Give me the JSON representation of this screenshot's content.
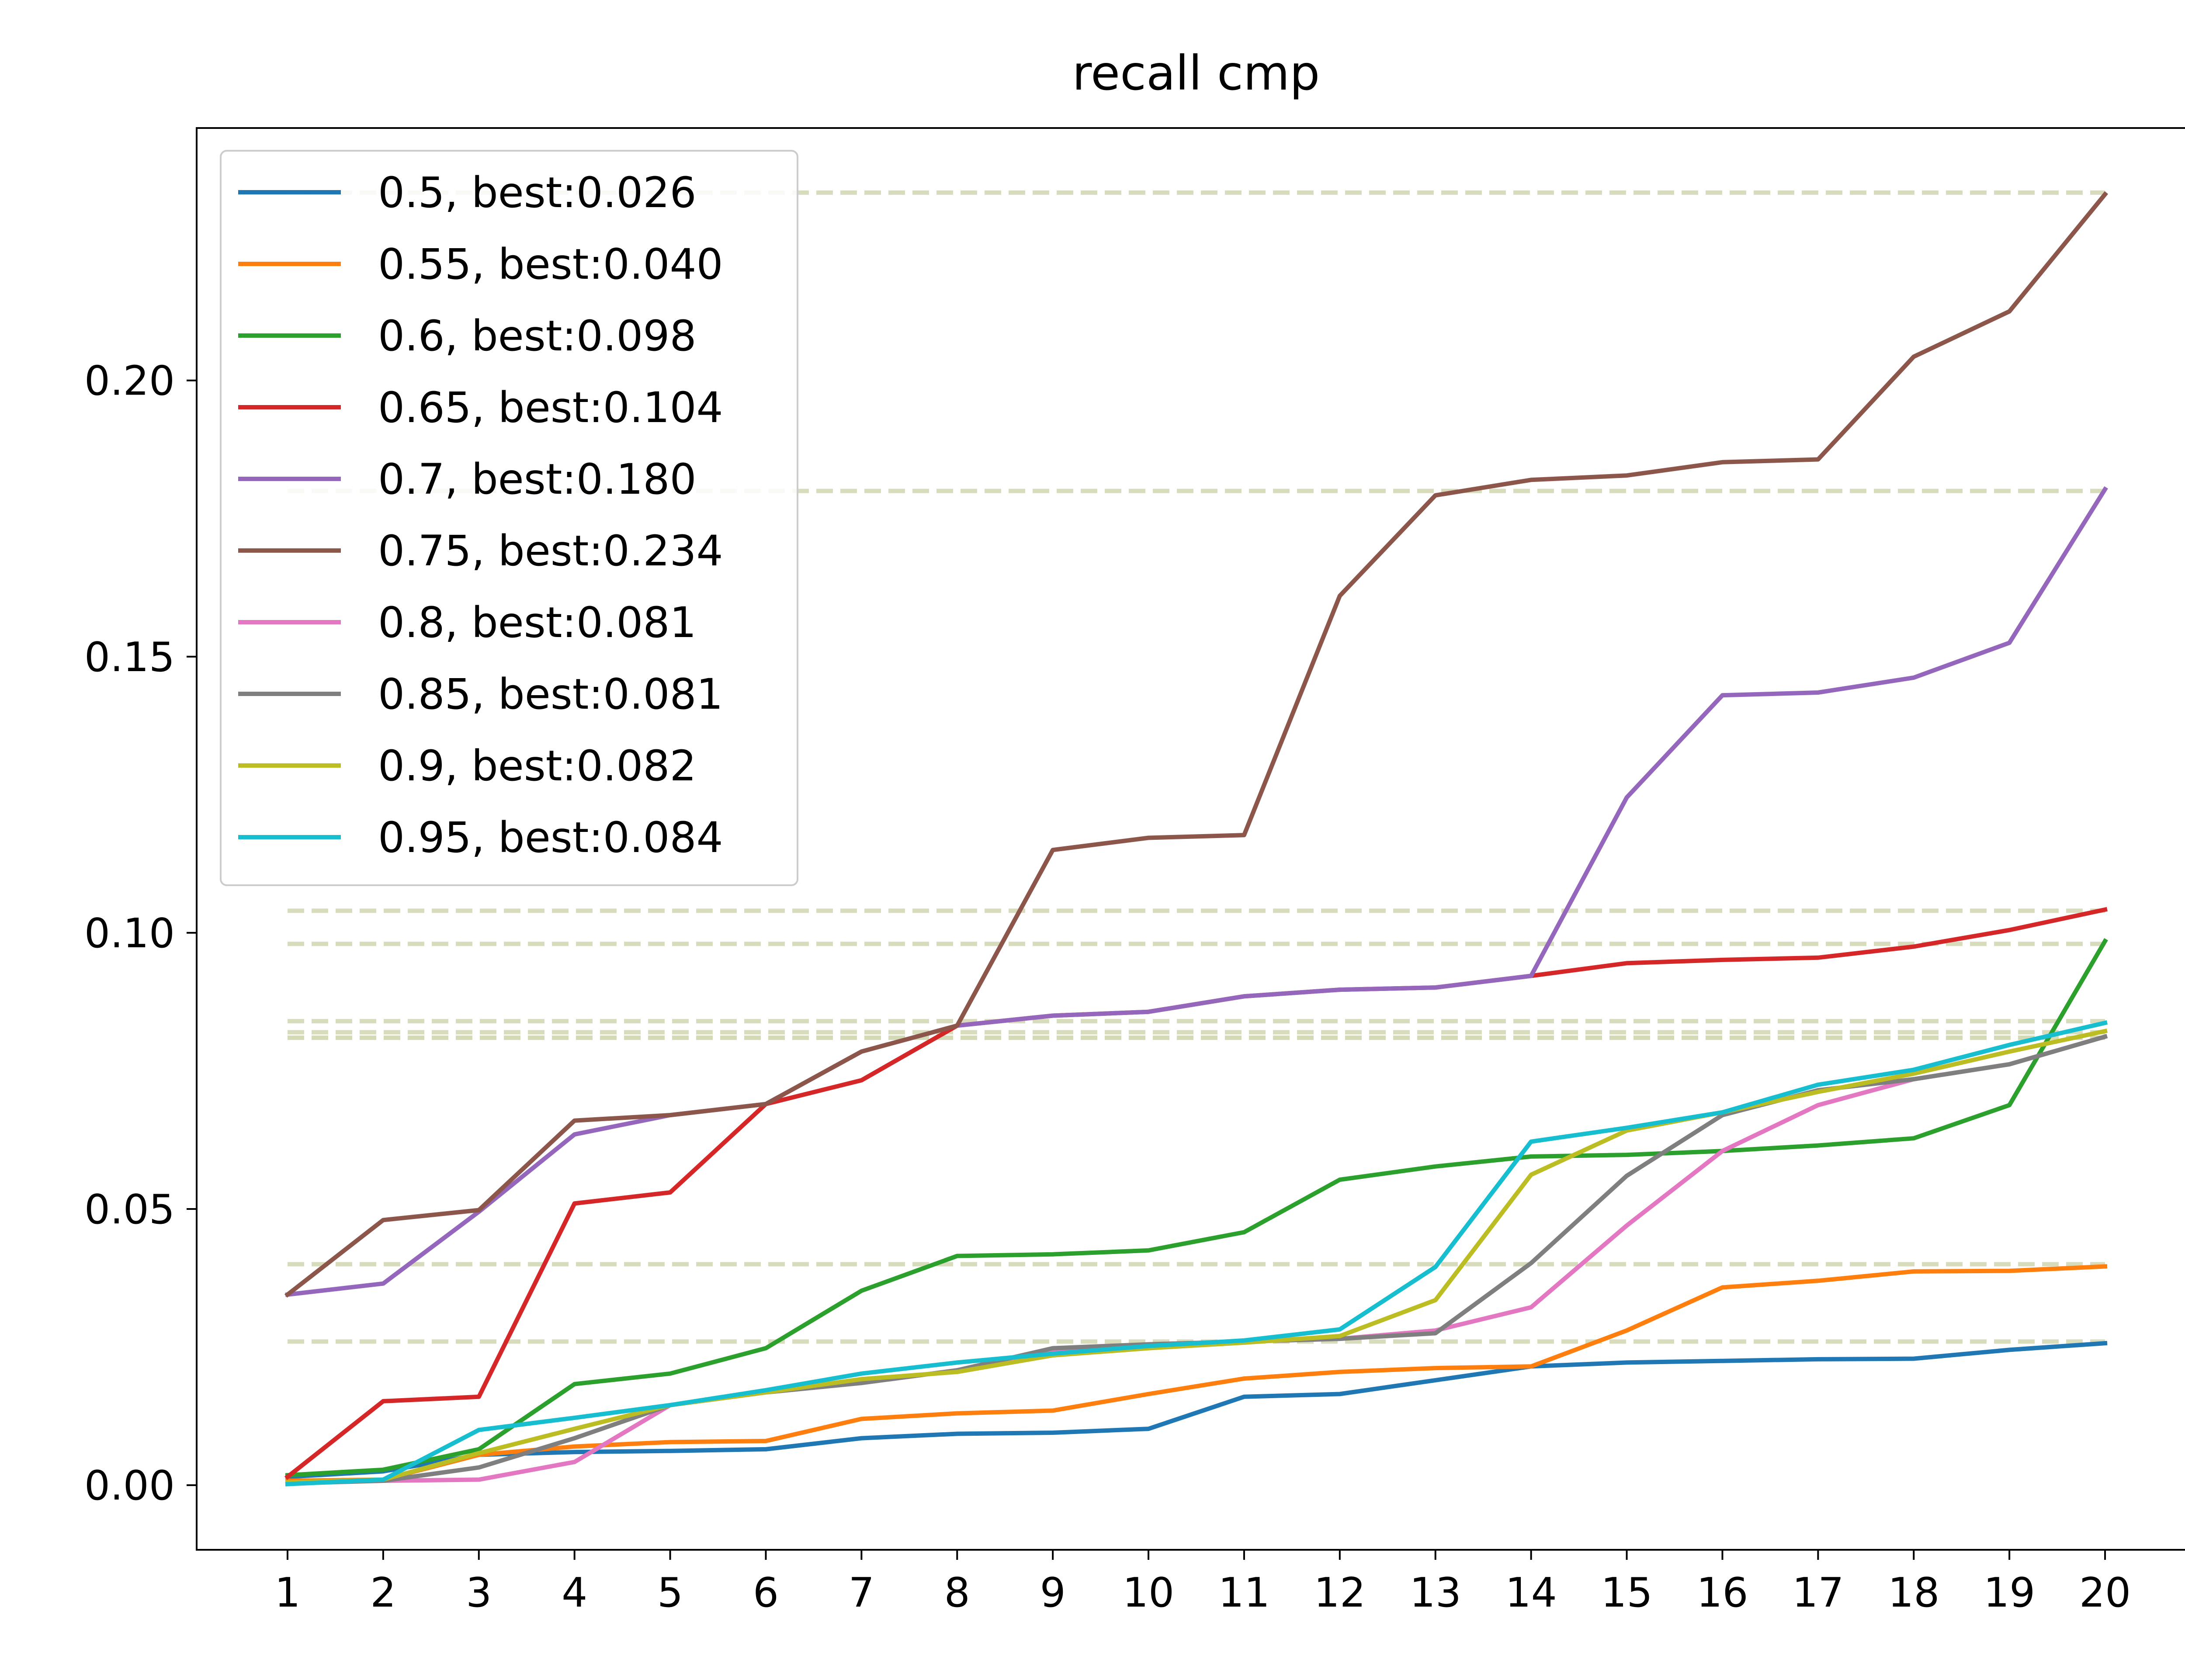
{
  "chart_data": {
    "type": "line",
    "title": "recall cmp",
    "xlabel": "",
    "ylabel": "",
    "x": [
      1,
      2,
      3,
      4,
      5,
      6,
      7,
      8,
      9,
      10,
      11,
      12,
      13,
      14,
      15,
      16,
      17,
      18,
      19,
      20
    ],
    "xlim": [
      0.05,
      20.95
    ],
    "ylim": [
      -0.0117,
      0.2457
    ],
    "yticks": [
      "0.00",
      "0.05",
      "0.10",
      "0.15",
      "0.20"
    ],
    "ytick_values": [
      0.0,
      0.05,
      0.1,
      0.15,
      0.2
    ],
    "grid": false,
    "legend_position": "upper left",
    "reference_line_color": "#d4d9b6",
    "series": [
      {
        "name": "0.5, best:0.026",
        "color": "#1f77b4",
        "best": 0.026,
        "values": [
          0.0015,
          0.0025,
          0.0055,
          0.006,
          0.0062,
          0.0065,
          0.0085,
          0.0093,
          0.0095,
          0.0102,
          0.016,
          0.0165,
          0.019,
          0.0215,
          0.0222,
          0.0225,
          0.0228,
          0.0229,
          0.0245,
          0.0257
        ]
      },
      {
        "name": "0.55, best:0.040",
        "color": "#ff7f0e",
        "best": 0.04,
        "values": [
          0.0008,
          0.001,
          0.0055,
          0.007,
          0.0078,
          0.008,
          0.012,
          0.013,
          0.0135,
          0.0165,
          0.0193,
          0.0205,
          0.0212,
          0.0215,
          0.028,
          0.0358,
          0.037,
          0.0387,
          0.0388,
          0.0396
        ]
      },
      {
        "name": "0.6, best:0.098",
        "color": "#2ca02c",
        "best": 0.098,
        "values": [
          0.0018,
          0.0028,
          0.0065,
          0.0183,
          0.0202,
          0.0248,
          0.0352,
          0.0415,
          0.0418,
          0.0425,
          0.0458,
          0.0553,
          0.0577,
          0.0595,
          0.0598,
          0.0605,
          0.0615,
          0.0628,
          0.0688,
          0.0985
        ]
      },
      {
        "name": "0.65, best:0.104",
        "color": "#d62728",
        "best": 0.104,
        "values": [
          0.0015,
          0.0152,
          0.016,
          0.051,
          0.053,
          0.069,
          0.0733,
          0.0832,
          0.085,
          0.0857,
          0.0885,
          0.0897,
          0.0901,
          0.0922,
          0.0945,
          0.0951,
          0.0955,
          0.0975,
          0.1005,
          0.1042
        ]
      },
      {
        "name": "0.7, best:0.180",
        "color": "#9467bd",
        "best": 0.18,
        "values": [
          0.0345,
          0.0365,
          0.0495,
          0.0635,
          0.067,
          0.069,
          0.0785,
          0.0832,
          0.085,
          0.0857,
          0.0885,
          0.0897,
          0.0901,
          0.0922,
          0.1245,
          0.143,
          0.1435,
          0.1462,
          0.1525,
          0.1803
        ]
      },
      {
        "name": "0.75, best:0.234",
        "color": "#8c564b",
        "best": 0.234,
        "values": [
          0.0345,
          0.048,
          0.0498,
          0.066,
          0.067,
          0.069,
          0.0785,
          0.0832,
          0.115,
          0.1172,
          0.1177,
          0.161,
          0.1792,
          0.182,
          0.1828,
          0.1852,
          0.1857,
          0.2043,
          0.2125,
          0.2337
        ]
      },
      {
        "name": "0.8, best:0.081",
        "color": "#e377c2",
        "best": 0.081,
        "values": [
          0.0005,
          0.0008,
          0.001,
          0.0042,
          0.0145,
          0.0168,
          0.0185,
          0.0208,
          0.0245,
          0.0255,
          0.026,
          0.0265,
          0.028,
          0.0322,
          0.047,
          0.0605,
          0.0688,
          0.0735,
          0.0762,
          0.0812
        ]
      },
      {
        "name": "0.85, best:0.081",
        "color": "#7f7f7f",
        "best": 0.081,
        "values": [
          0.0003,
          0.0008,
          0.0032,
          0.0085,
          0.0145,
          0.0168,
          0.0185,
          0.0208,
          0.0248,
          0.0255,
          0.026,
          0.0265,
          0.0275,
          0.0402,
          0.056,
          0.067,
          0.0715,
          0.0735,
          0.0762,
          0.0812
        ]
      },
      {
        "name": "0.9, best:0.082",
        "color": "#bcbd22",
        "best": 0.082,
        "values": [
          0.0005,
          0.001,
          0.0058,
          0.0102,
          0.0145,
          0.0168,
          0.0192,
          0.0205,
          0.0235,
          0.0248,
          0.0258,
          0.027,
          0.0335,
          0.0562,
          0.0642,
          0.0675,
          0.0712,
          0.0745,
          0.0785,
          0.0822
        ]
      },
      {
        "name": "0.95, best:0.084",
        "color": "#17becf",
        "best": 0.084,
        "values": [
          0.0002,
          0.001,
          0.01,
          0.0122,
          0.0145,
          0.0172,
          0.0202,
          0.0222,
          0.0238,
          0.0252,
          0.0262,
          0.0282,
          0.0395,
          0.0622,
          0.0647,
          0.0675,
          0.0725,
          0.0752,
          0.0797,
          0.0837
        ]
      }
    ]
  }
}
